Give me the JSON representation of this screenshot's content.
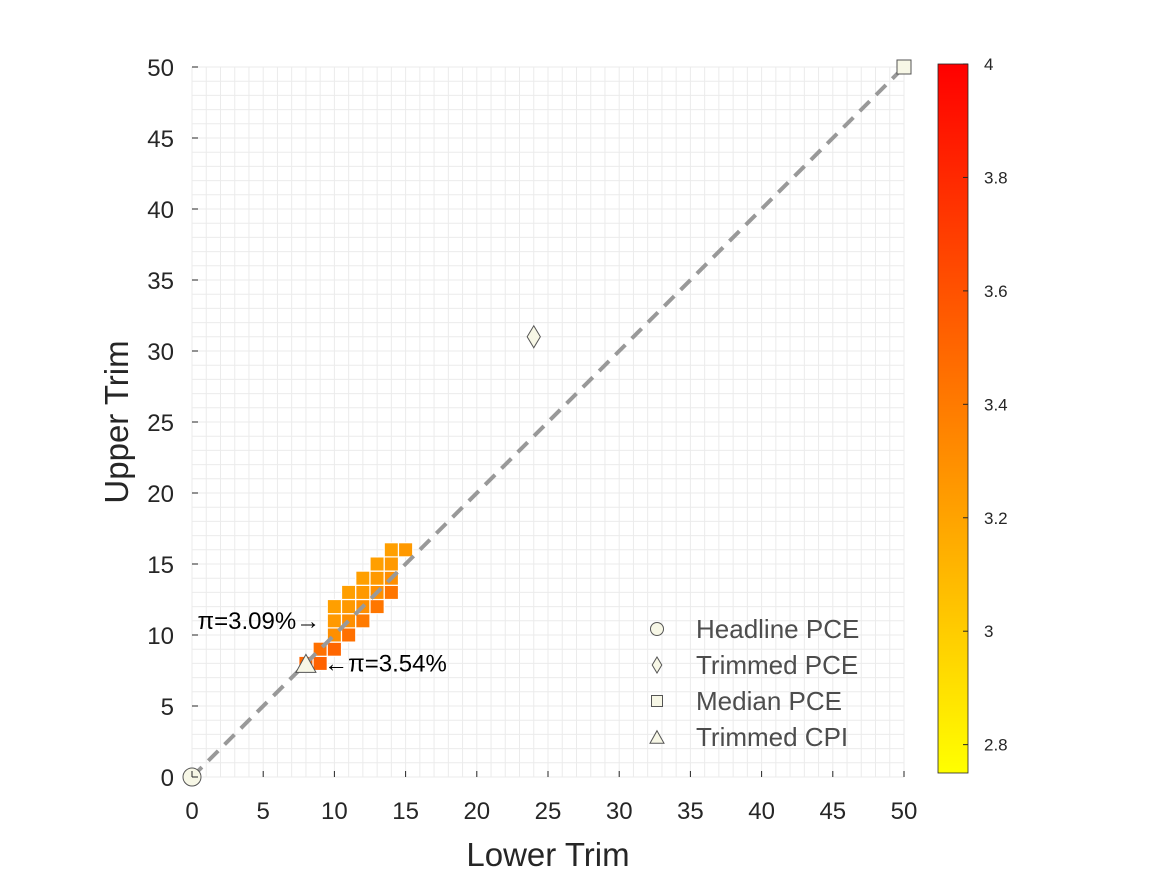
{
  "chart_data": {
    "type": "heatmap",
    "title": "",
    "xlabel": "Lower Trim",
    "ylabel": "Upper Trim",
    "xlim": [
      0,
      50
    ],
    "ylim": [
      0,
      50
    ],
    "xticks": [
      0,
      5,
      10,
      15,
      20,
      25,
      30,
      35,
      40,
      45,
      50
    ],
    "yticks": [
      0,
      5,
      10,
      15,
      20,
      25,
      30,
      35,
      40,
      45,
      50
    ],
    "grid": true,
    "colorbar": {
      "min": 2.75,
      "max": 4.0,
      "colors": [
        "#ffff00",
        "#ff0000"
      ],
      "ticks": [
        2.8,
        3,
        3.2,
        3.4,
        3.6,
        3.8,
        4
      ],
      "tick_labels": [
        "2.8",
        "3",
        "3.2",
        "3.4",
        "3.6",
        "3.8",
        "4"
      ]
    },
    "cells": [
      {
        "x": 8,
        "y": 8,
        "value": 3.5
      },
      {
        "x": 9,
        "y": 8,
        "value": 3.52
      },
      {
        "x": 9,
        "y": 9,
        "value": 3.45
      },
      {
        "x": 10,
        "y": 9,
        "value": 3.5
      },
      {
        "x": 10,
        "y": 10,
        "value": 3.3
      },
      {
        "x": 11,
        "y": 10,
        "value": 3.45
      },
      {
        "x": 10,
        "y": 11,
        "value": 3.25
      },
      {
        "x": 11,
        "y": 11,
        "value": 3.3
      },
      {
        "x": 12,
        "y": 11,
        "value": 3.4
      },
      {
        "x": 10,
        "y": 12,
        "value": 3.22
      },
      {
        "x": 11,
        "y": 12,
        "value": 3.25
      },
      {
        "x": 12,
        "y": 12,
        "value": 3.3
      },
      {
        "x": 13,
        "y": 12,
        "value": 3.42
      },
      {
        "x": 11,
        "y": 13,
        "value": 3.22
      },
      {
        "x": 12,
        "y": 13,
        "value": 3.25
      },
      {
        "x": 13,
        "y": 13,
        "value": 3.3
      },
      {
        "x": 14,
        "y": 13,
        "value": 3.42
      },
      {
        "x": 12,
        "y": 14,
        "value": 3.22
      },
      {
        "x": 13,
        "y": 14,
        "value": 3.25
      },
      {
        "x": 14,
        "y": 14,
        "value": 3.3
      },
      {
        "x": 13,
        "y": 15,
        "value": 3.22
      },
      {
        "x": 14,
        "y": 15,
        "value": 3.25
      },
      {
        "x": 14,
        "y": 16,
        "value": 3.22
      },
      {
        "x": 15,
        "y": 16,
        "value": 3.25
      }
    ],
    "reference_line": {
      "from": [
        0,
        0
      ],
      "to": [
        50,
        50
      ],
      "style": "dashed"
    },
    "markers": [
      {
        "name": "Headline PCE",
        "shape": "circle",
        "x": 0,
        "y": 0
      },
      {
        "name": "Trimmed PCE",
        "shape": "diamond",
        "x": 24,
        "y": 31
      },
      {
        "name": "Median PCE",
        "shape": "square",
        "x": 50,
        "y": 50
      },
      {
        "name": "Trimmed CPI",
        "shape": "triangle",
        "x": 8,
        "y": 8
      }
    ],
    "legend": {
      "location": "bottom-right",
      "entries": [
        "Headline PCE",
        "Trimmed PCE",
        "Median PCE",
        "Trimmed CPI"
      ]
    },
    "annotations": [
      {
        "text": "π=3.09%→",
        "x": 9,
        "y": 11,
        "align": "end"
      },
      {
        "text": "←π=3.54%",
        "x": 9,
        "y": 8,
        "align": "start"
      }
    ]
  },
  "colors": {
    "grid": "#ebebeb",
    "dashed_line": "#999999",
    "marker_fill": "#f7f7e6",
    "marker_stroke": "#555555",
    "text": "#262626"
  }
}
